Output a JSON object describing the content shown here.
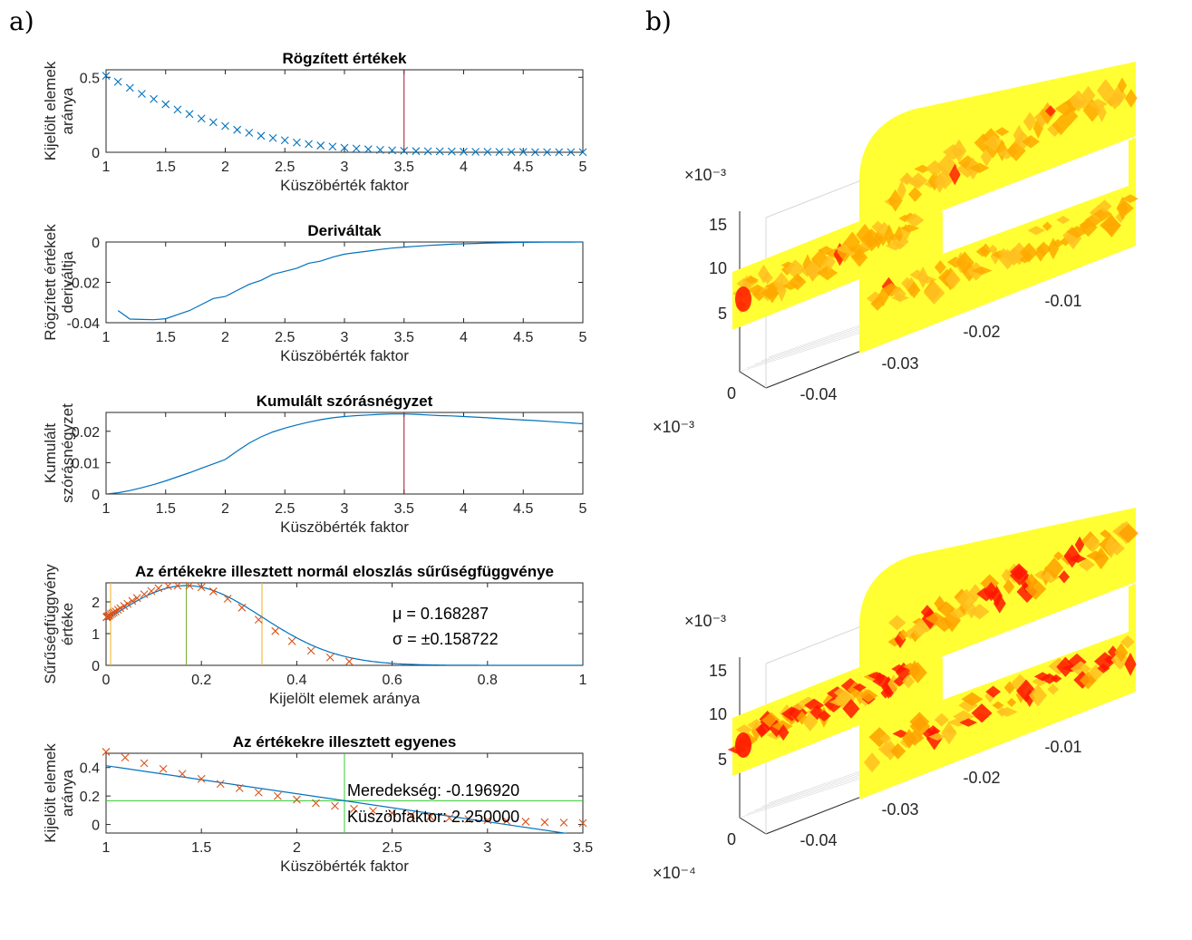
{
  "panel_labels": {
    "a": "a)",
    "b": "b)"
  },
  "chart_data": [
    {
      "type": "scatter",
      "title": "Rögzített értékek",
      "xlabel": "Küszöbérték faktor",
      "ylabel": [
        "Kijelölt elemek",
        "aránya"
      ],
      "xlim": [
        1,
        5
      ],
      "ylim": [
        0,
        0.55
      ],
      "xticks": [
        "1",
        "1.5",
        "2",
        "2.5",
        "3",
        "3.5",
        "4",
        "4.5",
        "5"
      ],
      "yticks": [
        "0",
        "0.5"
      ],
      "marker_color": "#0072BD",
      "vline": {
        "x": 3.5,
        "color": "#A2142F"
      },
      "x": [
        1,
        1.1,
        1.2,
        1.3,
        1.4,
        1.5,
        1.6,
        1.7,
        1.8,
        1.9,
        2,
        2.1,
        2.2,
        2.3,
        2.4,
        2.5,
        2.6,
        2.7,
        2.8,
        2.9,
        3,
        3.1,
        3.2,
        3.3,
        3.4,
        3.5,
        3.6,
        3.7,
        3.8,
        3.9,
        4,
        4.1,
        4.2,
        4.3,
        4.4,
        4.5,
        4.6,
        4.7,
        4.8,
        4.9,
        5
      ],
      "y": [
        0.51,
        0.47,
        0.43,
        0.39,
        0.355,
        0.32,
        0.285,
        0.255,
        0.225,
        0.2,
        0.175,
        0.15,
        0.13,
        0.11,
        0.095,
        0.08,
        0.065,
        0.055,
        0.045,
        0.038,
        0.03,
        0.025,
        0.02,
        0.016,
        0.013,
        0.01,
        0.008,
        0.007,
        0.006,
        0.005,
        0.004,
        0.003,
        0.003,
        0.002,
        0.002,
        0.002,
        0.001,
        0.001,
        0.001,
        0.001,
        0.001
      ]
    },
    {
      "type": "line",
      "title": "Deriváltak",
      "xlabel": "Küszöbérték faktor",
      "ylabel": [
        "Rögzített értékek",
        "deriváltja"
      ],
      "xlim": [
        1,
        5
      ],
      "ylim": [
        -0.04,
        0
      ],
      "xticks": [
        "1",
        "1.5",
        "2",
        "2.5",
        "3",
        "3.5",
        "4",
        "4.5",
        "5"
      ],
      "yticks": [
        "-0.04",
        "-0.02",
        "0"
      ],
      "line_color": "#0072BD",
      "x": [
        1.1,
        1.2,
        1.3,
        1.4,
        1.5,
        1.6,
        1.7,
        1.8,
        1.9,
        2,
        2.1,
        2.2,
        2.3,
        2.4,
        2.5,
        2.6,
        2.7,
        2.8,
        2.9,
        3,
        3.1,
        3.2,
        3.3,
        3.4,
        3.5,
        3.6,
        3.7,
        3.8,
        3.9,
        4,
        4.1,
        4.2,
        4.3,
        4.4,
        4.5,
        4.6,
        4.7,
        4.8,
        4.9,
        5
      ],
      "y": [
        -0.034,
        -0.0382,
        -0.0384,
        -0.0385,
        -0.038,
        -0.036,
        -0.034,
        -0.031,
        -0.028,
        -0.027,
        -0.024,
        -0.021,
        -0.019,
        -0.016,
        -0.0145,
        -0.013,
        -0.0105,
        -0.0095,
        -0.0075,
        -0.006,
        -0.0052,
        -0.0045,
        -0.0037,
        -0.003,
        -0.0025,
        -0.0021,
        -0.0017,
        -0.0014,
        -0.0011,
        -0.0009,
        -0.0007,
        -0.0005,
        -0.0004,
        -0.0003,
        -0.0002,
        -0.00015,
        -0.0001,
        -5e-05,
        -3e-05,
        0
      ]
    },
    {
      "type": "line",
      "title": "Kumulált szórásnégyzet",
      "xlabel": "Küszöbérték faktor",
      "ylabel": [
        "Kumulált",
        "szórásnégyzet"
      ],
      "xlim": [
        1,
        5
      ],
      "ylim": [
        0,
        0.026
      ],
      "xticks": [
        "1",
        "1.5",
        "2",
        "2.5",
        "3",
        "3.5",
        "4",
        "4.5",
        "5"
      ],
      "yticks": [
        "0",
        "0.01",
        "0.02"
      ],
      "line_color": "#0072BD",
      "vline": {
        "x": 3.5,
        "color": "#A2142F"
      },
      "x": [
        1,
        1.1,
        1.2,
        1.3,
        1.4,
        1.5,
        1.6,
        1.7,
        1.8,
        1.9,
        2,
        2.1,
        2.2,
        2.3,
        2.4,
        2.5,
        2.6,
        2.7,
        2.8,
        2.9,
        3,
        3.1,
        3.2,
        3.3,
        3.4,
        3.5,
        3.6,
        3.7,
        3.8,
        3.9,
        4,
        4.2,
        4.4,
        4.6,
        4.8,
        5
      ],
      "y": [
        0,
        0.0004,
        0.0011,
        0.002,
        0.003,
        0.0042,
        0.0055,
        0.0068,
        0.0082,
        0.0096,
        0.011,
        0.0137,
        0.0162,
        0.0182,
        0.0198,
        0.021,
        0.022,
        0.0229,
        0.0237,
        0.0243,
        0.0247,
        0.025,
        0.0252,
        0.0254,
        0.0255,
        0.0255,
        0.0254,
        0.0252,
        0.025,
        0.0249,
        0.0247,
        0.0243,
        0.0238,
        0.0234,
        0.0229,
        0.0224
      ]
    },
    {
      "type": "scatter",
      "title": "Az értékekre illesztett normál eloszlás sűrűségfüggvénye",
      "xlabel": "Kijelölt elemek aránya",
      "ylabel": [
        "Sűrűségfüggvény",
        "értéke"
      ],
      "xlim": [
        0,
        1
      ],
      "ylim": [
        0,
        2.6
      ],
      "xticks": [
        "0",
        "0.2",
        "0.4",
        "0.6",
        "0.8",
        "1"
      ],
      "yticks": [
        "0",
        "1",
        "2"
      ],
      "marker_color": "#D95319",
      "line_color": "#0072BD",
      "annotation": {
        "mu": "μ = 0.168287",
        "sigma": "σ = ±0.158722"
      },
      "mu": 0.168287,
      "sigma": 0.158722,
      "vlines": [
        {
          "x": 0.009565,
          "color": "#EDB120"
        },
        {
          "x": 0.168287,
          "color": "#77AC30"
        },
        {
          "x": 0.327009,
          "color": "#EDB120"
        }
      ],
      "x": [
        0.001,
        0.002,
        0.003,
        0.005,
        0.007,
        0.01,
        0.013,
        0.016,
        0.02,
        0.025,
        0.03,
        0.038,
        0.045,
        0.055,
        0.065,
        0.08,
        0.095,
        0.11,
        0.13,
        0.15,
        0.175,
        0.2,
        0.225,
        0.255,
        0.285,
        0.32,
        0.355,
        0.39,
        0.43,
        0.47,
        0.51
      ],
      "y": [
        1.52,
        1.53,
        1.54,
        1.56,
        1.58,
        1.61,
        1.64,
        1.67,
        1.7,
        1.75,
        1.8,
        1.87,
        1.94,
        2.03,
        2.12,
        2.24,
        2.34,
        2.43,
        2.5,
        2.51,
        2.51,
        2.46,
        2.33,
        2.1,
        1.82,
        1.44,
        1.08,
        0.76,
        0.46,
        0.25,
        0.12
      ]
    },
    {
      "type": "scatter",
      "title": "Az értékekre illesztett egyenes",
      "xlabel": "Küszöbérték faktor",
      "ylabel": [
        "Kijelölt elemek",
        "aránya"
      ],
      "xlim": [
        1,
        3.5
      ],
      "ylim": [
        -0.06,
        0.5
      ],
      "xticks": [
        "1",
        "1.5",
        "2",
        "2.5",
        "3",
        "3.5"
      ],
      "yticks": [
        "0",
        "0.2",
        "0.4"
      ],
      "marker_color": "#D95319",
      "line_color": "#0072BD",
      "fit": {
        "slope": -0.19692,
        "intercept": 0.6098
      },
      "hline": {
        "y": 0.1667,
        "color": "#33CC33"
      },
      "vline": {
        "x": 2.25,
        "color": "#33CC33"
      },
      "annotation": {
        "slope": "Meredekség: -0.196920",
        "threshold": "Küszöbfaktor: 2.250000"
      },
      "x": [
        1,
        1.1,
        1.2,
        1.3,
        1.4,
        1.5,
        1.6,
        1.7,
        1.8,
        1.9,
        2,
        2.1,
        2.2,
        2.3,
        2.4,
        2.5,
        2.6,
        2.7,
        2.8,
        2.9,
        3,
        3.1,
        3.2,
        3.3,
        3.4,
        3.5
      ],
      "y": [
        0.51,
        0.47,
        0.43,
        0.39,
        0.355,
        0.32,
        0.285,
        0.255,
        0.225,
        0.2,
        0.175,
        0.15,
        0.13,
        0.11,
        0.095,
        0.08,
        0.065,
        0.055,
        0.045,
        0.038,
        0.03,
        0.025,
        0.02,
        0.016,
        0.013,
        0.01
      ]
    }
  ],
  "volume_plots": [
    {
      "zticks": [
        "0",
        "5",
        "10",
        "15"
      ],
      "yticks": [
        "-0.04",
        "-0.03",
        "-0.02",
        "-0.01"
      ],
      "top_exponent": "×10⁻³",
      "bottom_exponent": "×10⁻³",
      "colors": {
        "outer": "#FFFF33",
        "core": "#FFA800",
        "hot": "#FF2000"
      }
    },
    {
      "zticks": [
        "0",
        "5",
        "10",
        "15"
      ],
      "yticks": [
        "-0.04",
        "-0.03",
        "-0.02",
        "-0.01"
      ],
      "top_exponent": "×10⁻³",
      "bottom_exponent": "×10⁻⁴",
      "colors": {
        "outer": "#FFFF33",
        "core": "#FFA000",
        "hot": "#FF1500"
      }
    }
  ]
}
